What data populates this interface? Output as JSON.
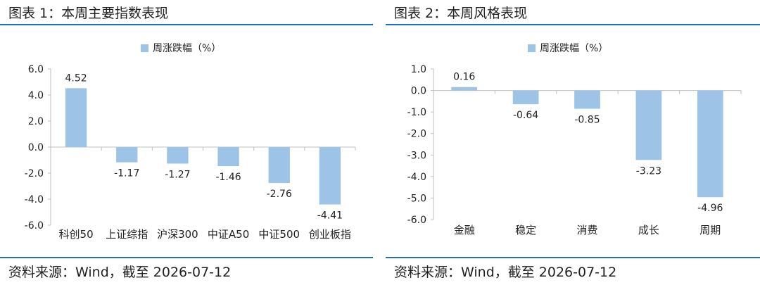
{
  "charts": [
    {
      "figure_title": "图表 1：本周主要指数表现",
      "source": "资料来源：Wind，截至 2026-07-12",
      "legend_label": "周涨跌幅（%）",
      "bar_color": "#9dc3e6",
      "chart_data": {
        "type": "bar",
        "categories": [
          "科创50",
          "上证综指",
          "沪深300",
          "中证A50",
          "中证500",
          "创业板指"
        ],
        "series": [
          {
            "name": "周涨跌幅（%）",
            "values": [
              4.52,
              -1.17,
              -1.27,
              -1.46,
              -2.76,
              -4.41
            ]
          }
        ],
        "data_labels": [
          "4.52",
          "-1.17",
          "-1.27",
          "-1.46",
          "-2.76",
          "-4.41"
        ],
        "ylim": [
          -6,
          6
        ],
        "yticks": [
          6,
          4,
          2,
          0,
          -2,
          -4,
          -6
        ],
        "ytick_labels": [
          "6.0",
          "4.0",
          "2.0",
          "0.0",
          "-2.0",
          "-4.0",
          "-6.0"
        ],
        "legend_position": "top",
        "grid": false
      }
    },
    {
      "figure_title": "图表 2：本周风格表现",
      "source": "资料来源：Wind，截至 2026-07-12",
      "legend_label": "周涨跌幅（%）",
      "bar_color": "#9dc3e6",
      "chart_data": {
        "type": "bar",
        "categories": [
          "金融",
          "稳定",
          "消费",
          "成长",
          "周期"
        ],
        "series": [
          {
            "name": "周涨跌幅（%）",
            "values": [
              0.16,
              -0.64,
              -0.85,
              -3.23,
              -4.96
            ]
          }
        ],
        "data_labels": [
          "0.16",
          "-0.64",
          "-0.85",
          "-3.23",
          "-4.96"
        ],
        "ylim": [
          -6,
          1
        ],
        "yticks": [
          1,
          0,
          -1,
          -2,
          -3,
          -4,
          -5,
          -6
        ],
        "ytick_labels": [
          "1.0",
          "0.0",
          "-1.0",
          "-2.0",
          "-3.0",
          "-4.0",
          "-5.0",
          "-6.0"
        ],
        "legend_position": "top",
        "grid": false
      }
    }
  ]
}
